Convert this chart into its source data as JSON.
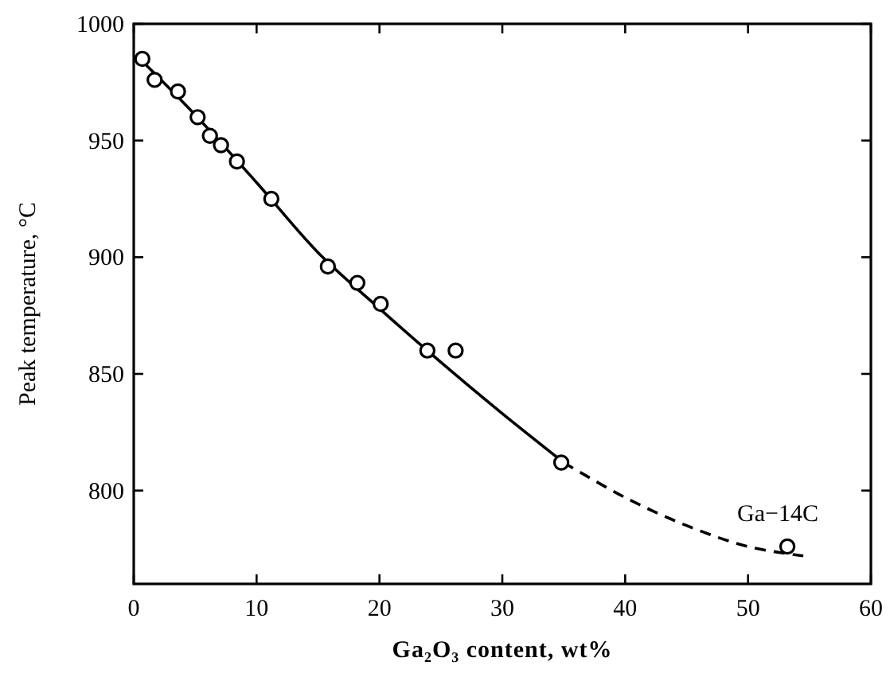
{
  "chart_data": {
    "type": "scatter",
    "xlabel": "Ga₂O₃ content, wt%",
    "ylabel": "Peak temperature, °C",
    "xlim": [
      0,
      60
    ],
    "ylim": [
      760,
      1000
    ],
    "xticks": [
      0,
      10,
      20,
      30,
      40,
      50,
      60
    ],
    "yticks": [
      800,
      850,
      900,
      950,
      1000
    ],
    "grid": false,
    "series": [
      {
        "marker": "circle",
        "color": "#000000",
        "x": [
          0.7,
          1.7,
          3.6,
          5.2,
          6.2,
          7.1,
          8.4,
          11.2,
          15.8,
          18.2,
          20.1,
          23.9,
          26.2,
          34.8,
          53.2
        ],
        "values": [
          985,
          976,
          971,
          960,
          952,
          948,
          941,
          925,
          896,
          889,
          880,
          860,
          860,
          812,
          776
        ]
      },
      {
        "type": "line",
        "line_style": "solid",
        "color": "#000000",
        "x": [
          0.5,
          5,
          10,
          15,
          20,
          25,
          30,
          35
        ],
        "values": [
          985,
          961,
          932,
          902,
          878,
          855,
          833,
          812
        ]
      },
      {
        "type": "line",
        "line_style": "dashed",
        "color": "#000000",
        "x": [
          35,
          40,
          45,
          50,
          54.5
        ],
        "values": [
          812,
          797,
          785,
          776,
          772
        ]
      }
    ],
    "annotations": [
      {
        "text": "Ga−14C",
        "x": 53.2,
        "y": 776
      }
    ]
  }
}
